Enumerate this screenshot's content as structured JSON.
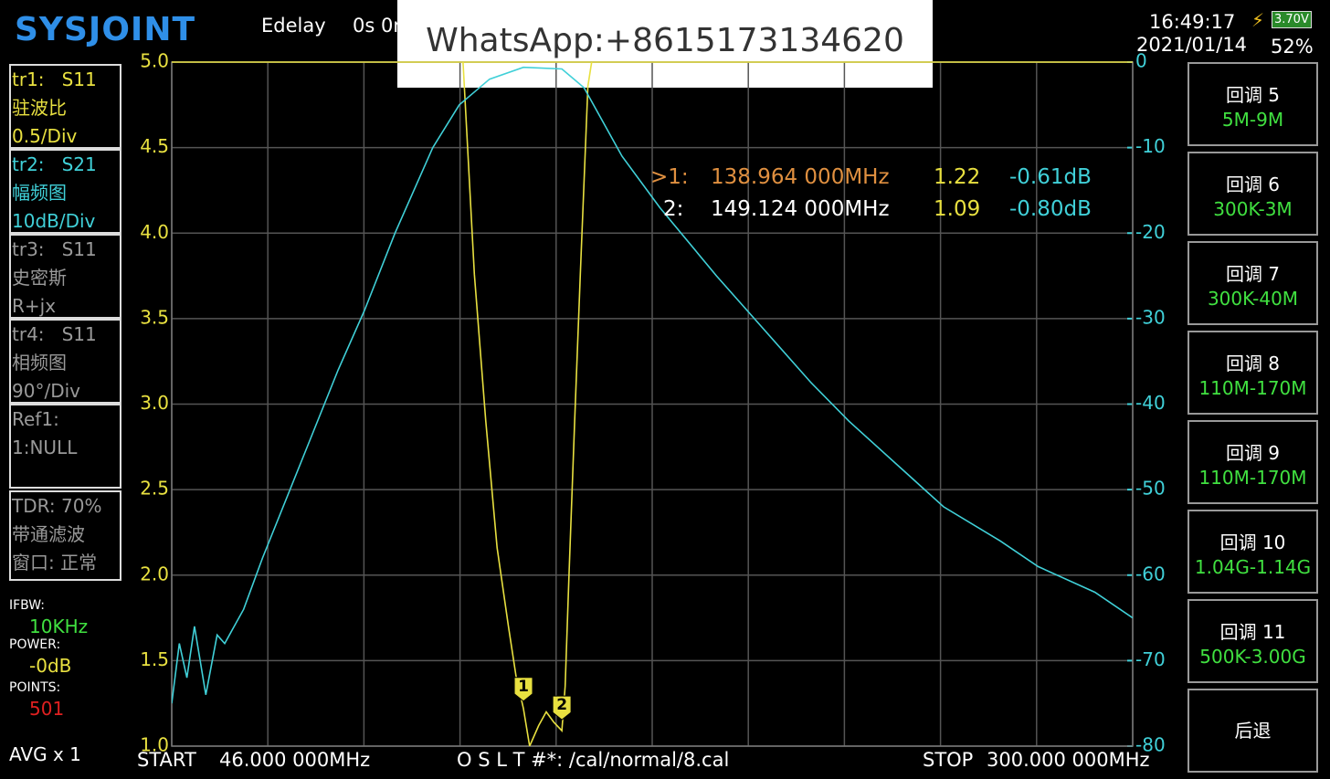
{
  "header": {
    "brand": "SYSJOINT",
    "edelay": "Edelay",
    "edelay_value": "0s 0r",
    "time": "16:49:17",
    "date": "2021/01/14",
    "battery_voltage": "3.70V",
    "battery_percent": "52%"
  },
  "watermark": "WhatsApp:+8615173134620",
  "traces": [
    {
      "id": "tr1:",
      "param": "S11",
      "format": "驻波比",
      "scale": "0.5/Div"
    },
    {
      "id": "tr2:",
      "param": "S21",
      "format": "幅频图",
      "scale": "10dB/Div"
    },
    {
      "id": "tr3:",
      "param": "S11",
      "format": "史密斯",
      "scale": "R+jx"
    },
    {
      "id": "tr4:",
      "param": "S11",
      "format": "相频图",
      "scale": "90°/Div"
    }
  ],
  "ref": {
    "label": "Ref1:",
    "value": "1:NULL"
  },
  "tdr": {
    "line1": "TDR: 70%",
    "line2": "带通滤波",
    "line3": "窗口: 正常"
  },
  "settings": {
    "ifbw_label": "IFBW:",
    "ifbw": "10KHz",
    "power_label": "POWER:",
    "power": "-0dB",
    "points_label": "POINTS:",
    "points": "501",
    "avg": "AVG x 1"
  },
  "buttons": [
    {
      "title": "回调 5",
      "range": "5M-9M"
    },
    {
      "title": "回调 6",
      "range": "300K-3M"
    },
    {
      "title": "回调 7",
      "range": "300K-40M"
    },
    {
      "title": "回调 8",
      "range": "110M-170M"
    },
    {
      "title": "回调 9",
      "range": "110M-170M"
    },
    {
      "title": "回调 10",
      "range": "1.04G-1.14G"
    },
    {
      "title": "回调 11",
      "range": "500K-3.00G"
    },
    {
      "title": "后退"
    }
  ],
  "readout": [
    {
      "marker": ">1:",
      "freq": "138.964 000MHz",
      "swr": "1.22",
      "s21": "-0.61dB"
    },
    {
      "marker": "2:",
      "freq": "149.124 000MHz",
      "swr": "1.09",
      "s21": "-0.80dB"
    }
  ],
  "footer": {
    "start": "START",
    "start_freq": "46.000 000MHz",
    "cal": "O S L T #*: /cal/normal/8.cal",
    "stop": "STOP",
    "stop_freq": "300.000 000MHz"
  },
  "chart_data": {
    "type": "line",
    "xlim": [
      46,
      300
    ],
    "ylim": [
      1,
      5
    ],
    "y2lim": [
      -80,
      0
    ],
    "yticks": [
      {
        "value": 1,
        "label": "1.0"
      },
      1.5,
      {
        "value": 2,
        "label": "2.0"
      },
      2.5,
      {
        "value": 3,
        "label": "3.0"
      },
      3.5,
      {
        "value": 4,
        "label": "4.0"
      },
      4.5,
      {
        "value": 5,
        "label": "5.0"
      }
    ],
    "y2ticks": [
      0,
      -10,
      -20,
      -30,
      -40,
      -50,
      -60,
      -70,
      -80
    ],
    "grid": true,
    "series": [
      {
        "color": "#e8e040",
        "x": [
          123,
          126,
          129,
          132,
          135,
          137,
          138.964,
          140.6,
          143,
          145,
          147,
          149.124,
          150,
          151,
          152.5,
          154,
          156,
          157
        ],
        "values": [
          5,
          3.76,
          2.9,
          2.16,
          1.7,
          1.41,
          1.22,
          1.0,
          1.12,
          1.2,
          1.14,
          1.09,
          1.35,
          2.0,
          2.9,
          3.76,
          4.86,
          5
        ]
      },
      {
        "color": "#40d0d8",
        "axis": "y2",
        "x": [
          46,
          48,
          50,
          52,
          55,
          58,
          60,
          65,
          70,
          80,
          90,
          97,
          105,
          115,
          122,
          130,
          138.964,
          149.124,
          155,
          165,
          175,
          190,
          200,
          215,
          225,
          240,
          250,
          265,
          275,
          290,
          300
        ],
        "values": [
          -75,
          -68,
          -72,
          -66,
          -74,
          -67,
          -68,
          -64,
          -58,
          -47,
          -36,
          -29,
          -20,
          -10,
          -5,
          -2,
          -0.61,
          -0.8,
          -3,
          -11,
          -17,
          -25,
          -30,
          -37.5,
          -42,
          -48,
          -52,
          -56,
          -59,
          -62,
          -65
        ]
      }
    ],
    "markers": [
      {
        "label": "1",
        "x": 138.964,
        "y": 1.22
      },
      {
        "label": "2",
        "x": 149.124,
        "y": 1.09
      }
    ]
  }
}
